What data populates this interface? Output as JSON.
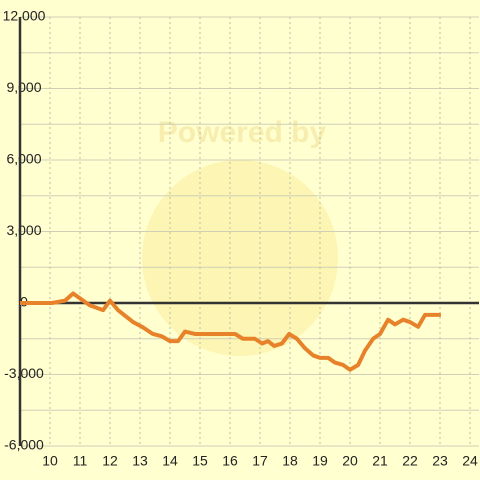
{
  "chart_data": {
    "type": "line",
    "watermark": "Powered by",
    "x": [
      9,
      10.07,
      10.5,
      10.77,
      11.33,
      11.77,
      12,
      12.27,
      12.77,
      13.07,
      13.43,
      13.73,
      14,
      14.27,
      14.5,
      14.83,
      16.17,
      16.43,
      16.83,
      17.07,
      17.27,
      17.47,
      17.73,
      17.97,
      18.23,
      18.5,
      18.77,
      19,
      19.27,
      19.5,
      19.77,
      20,
      20.27,
      20.5,
      20.77,
      21,
      21.27,
      21.5,
      21.77,
      22,
      22.27,
      22.5,
      22.77,
      23.03
    ],
    "series": [
      {
        "color": "#e8822a",
        "values": [
          0,
          0,
          100,
          400,
          -100,
          -300,
          100,
          -300,
          -800,
          -1000,
          -1300,
          -1400,
          -1600,
          -1600,
          -1200,
          -1300,
          -1300,
          -1500,
          -1500,
          -1700,
          -1600,
          -1800,
          -1700,
          -1300,
          -1500,
          -1900,
          -2200,
          -2300,
          -2300,
          -2500,
          -2600,
          -2800,
          -2600,
          -2000,
          -1500,
          -1300,
          -700,
          -900,
          -700,
          -800,
          -1000,
          -500,
          -500,
          -500
        ]
      }
    ],
    "xlim": [
      9,
      24.3
    ],
    "xticks": [
      10,
      11,
      12,
      13,
      14,
      15,
      16,
      17,
      18,
      19,
      20,
      21,
      22,
      23,
      24
    ],
    "ylim": [
      -6000,
      12000
    ],
    "yticks": [
      {
        "value": -6000,
        "label": "-6,000"
      },
      {
        "value": -3000,
        "label": "-3,000"
      },
      0,
      {
        "value": 3000,
        "label": "3,000"
      },
      {
        "value": 6000,
        "label": "6,000"
      },
      {
        "value": 9000,
        "label": "9,000"
      },
      {
        "value": 12000,
        "label": "12,000"
      }
    ],
    "y_minor_ticks": [
      -4500,
      -1500,
      1500,
      4500,
      7500,
      10500
    ],
    "grid": true
  }
}
